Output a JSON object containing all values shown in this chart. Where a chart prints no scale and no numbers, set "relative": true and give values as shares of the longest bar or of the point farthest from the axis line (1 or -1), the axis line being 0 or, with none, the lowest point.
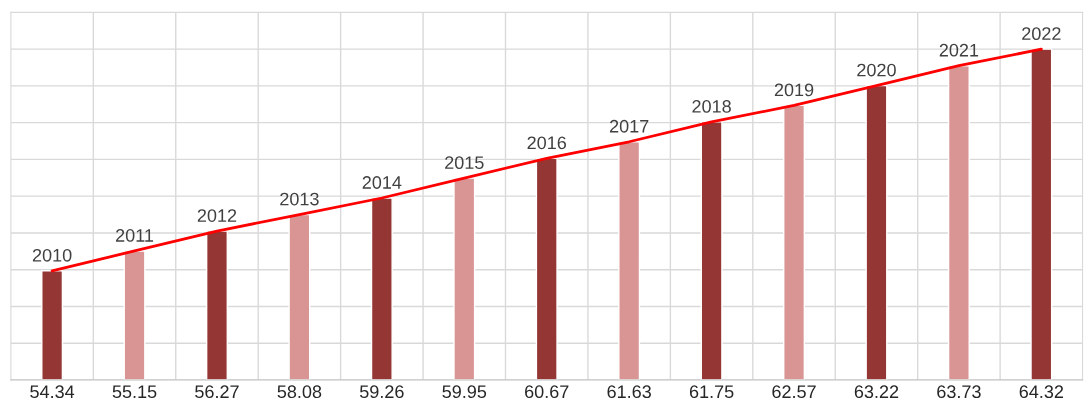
{
  "chart_data": {
    "type": "bar",
    "relative": true,
    "grid": true,
    "legend": false,
    "categories": [
      "54.34",
      "55.15",
      "56.27",
      "58.08",
      "59.26",
      "59.95",
      "60.67",
      "61.63",
      "61.75",
      "62.57",
      "63.22",
      "63.73",
      "64.32"
    ],
    "series": [
      {
        "values": [
          0.33,
          0.39,
          0.45,
          0.5,
          0.55,
          0.61,
          0.67,
          0.72,
          0.78,
          0.83,
          0.89,
          0.95,
          1.0
        ],
        "colors": [
          "#943634",
          "#d99594",
          "#943634",
          "#d99594",
          "#943634",
          "#d99594",
          "#943634",
          "#d99594",
          "#943634",
          "#d99594",
          "#943634",
          "#d99594",
          "#943634"
        ]
      },
      {
        "type": "line",
        "color": "#ff0000",
        "values": [
          0.33,
          0.39,
          0.45,
          0.5,
          0.55,
          0.61,
          0.67,
          0.72,
          0.78,
          0.83,
          0.89,
          0.95,
          1.0
        ]
      }
    ],
    "annotations": [
      {
        "text": "2010",
        "x": "54.34",
        "y": 0.33
      },
      {
        "text": "2011",
        "x": "55.15",
        "y": 0.39
      },
      {
        "text": "2012",
        "x": "56.27",
        "y": 0.45
      },
      {
        "text": "2013",
        "x": "58.08",
        "y": 0.5
      },
      {
        "text": "2014",
        "x": "59.26",
        "y": 0.55
      },
      {
        "text": "2015",
        "x": "59.95",
        "y": 0.61
      },
      {
        "text": "2016",
        "x": "60.67",
        "y": 0.67
      },
      {
        "text": "2017",
        "x": "61.63",
        "y": 0.72
      },
      {
        "text": "2018",
        "x": "61.75",
        "y": 0.78
      },
      {
        "text": "2019",
        "x": "62.57",
        "y": 0.83
      },
      {
        "text": "2020",
        "x": "63.22",
        "y": 0.89
      },
      {
        "text": "2021",
        "x": "63.73",
        "y": 0.95
      },
      {
        "text": "2022",
        "x": "64.32",
        "y": 1.0
      }
    ]
  }
}
